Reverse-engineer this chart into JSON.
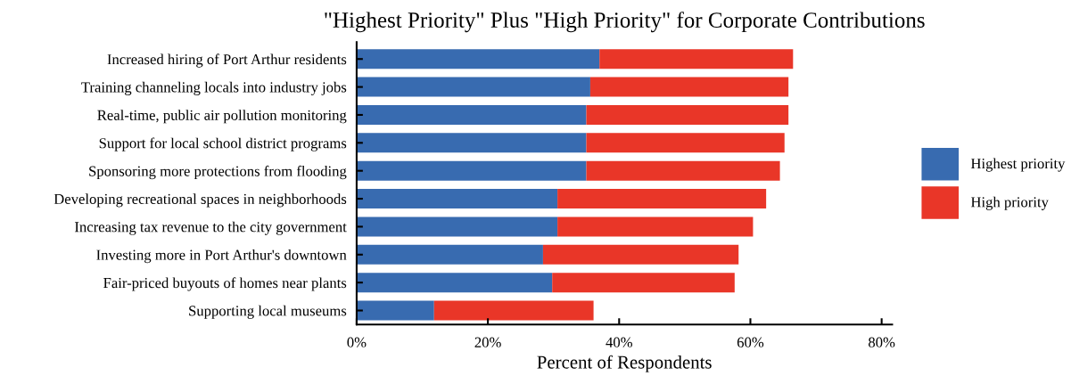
{
  "chart_data": {
    "type": "bar",
    "orientation": "horizontal",
    "stacked": true,
    "title": "\"Highest Priority\" Plus \"High Priority\" for Corporate Contributions",
    "xlabel": "Percent of Respondents",
    "categories": [
      "Increased hiring of Port Arthur residents",
      "Training channeling locals into industry jobs",
      "Real-time, public air pollution monitoring",
      "Support for local school district programs",
      "Sponsoring more protections from flooding",
      "Developing recreational spaces in neighborhoods",
      "Increasing tax revenue to the city government",
      "Investing more in Port Arthur's downtown",
      "Fair-priced buyouts of homes near plants",
      "Supporting local museums"
    ],
    "series": [
      {
        "name": "Highest priority",
        "color": "#386bb0",
        "values": [
          37.0,
          35.6,
          35.0,
          35.0,
          35.0,
          30.6,
          30.6,
          28.4,
          29.8,
          11.8
        ]
      },
      {
        "name": "High priority",
        "color": "#e93628",
        "values": [
          29.5,
          30.2,
          30.8,
          30.2,
          29.5,
          31.8,
          29.8,
          29.8,
          27.8,
          24.3
        ]
      }
    ],
    "xlim": [
      0,
      81.6
    ],
    "xticks": [
      {
        "value": 0,
        "label": "0%"
      },
      {
        "value": 20,
        "label": "20%"
      },
      {
        "value": 40,
        "label": "40%"
      },
      {
        "value": 60,
        "label": "60%"
      },
      {
        "value": 80,
        "label": "80%"
      }
    ],
    "grid": false,
    "legend": "right"
  }
}
